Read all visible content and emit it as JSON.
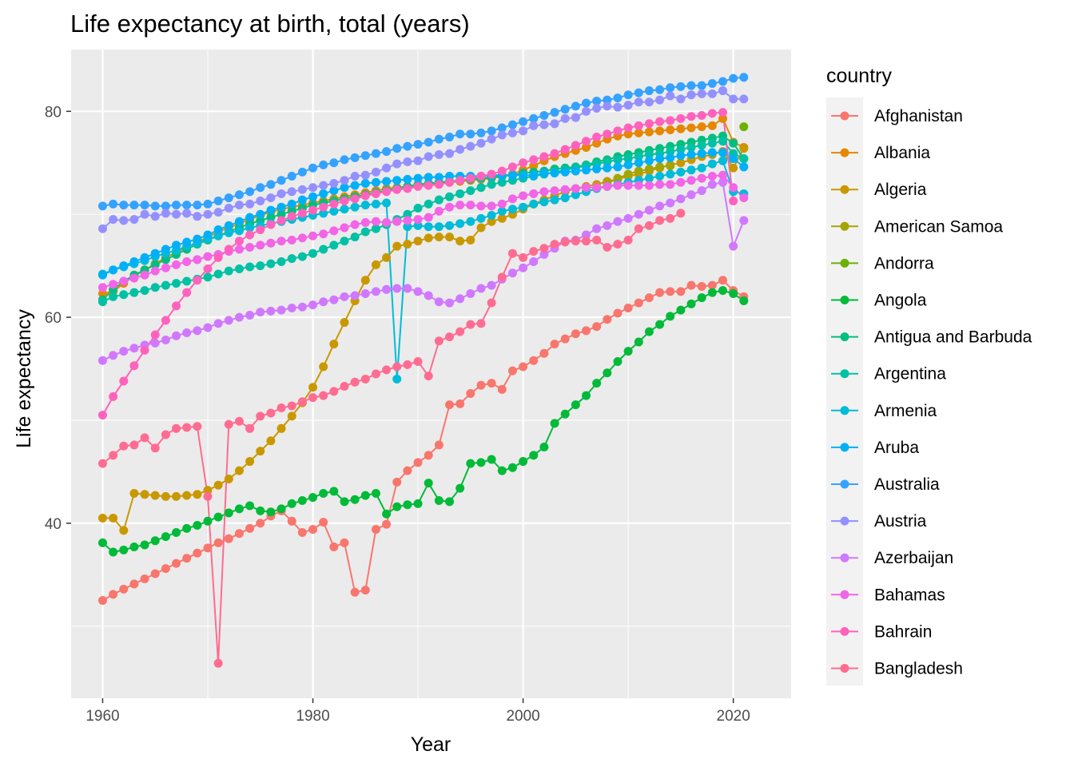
{
  "chart_data": {
    "type": "line",
    "title": "Life expectancy at birth, total (years)",
    "xlabel": "Year",
    "ylabel": "Life expectancy",
    "xlim": [
      1957,
      2025.5
    ],
    "ylim": [
      23,
      86
    ],
    "x_ticks": [
      1960,
      1980,
      2000,
      2020
    ],
    "y_ticks": [
      40,
      60,
      80
    ],
    "grid": true,
    "markers": true,
    "legend_title": "country",
    "legend_position": "right",
    "series": [
      {
        "name": "Afghanistan",
        "color": "#F8766D",
        "start": 1960,
        "values": [
          32.5,
          33.1,
          33.6,
          34.1,
          34.6,
          35.1,
          35.6,
          36.1,
          36.6,
          37.1,
          37.6,
          38.1,
          38.5,
          39.0,
          39.5,
          40.0,
          40.7,
          41.2,
          40.2,
          39.1,
          39.4,
          40.1,
          37.7,
          38.1,
          33.3,
          33.5,
          39.4,
          39.9,
          44.0,
          45.1,
          45.9,
          46.6,
          47.6,
          51.5,
          51.6,
          52.6,
          53.4,
          53.6,
          53.0,
          54.8,
          55.2,
          55.8,
          56.5,
          57.4,
          57.9,
          58.4,
          58.7,
          59.1,
          59.8,
          60.4,
          60.9,
          61.4,
          61.9,
          62.4,
          62.5,
          62.5,
          63.1,
          63.0,
          63.1,
          63.6,
          62.6,
          62.0
        ]
      },
      {
        "name": "Albania",
        "color": "#E58700",
        "start": 1960,
        "values": [
          62.3,
          62.5,
          63.3,
          64.0,
          64.6,
          65.2,
          65.8,
          66.3,
          66.8,
          67.3,
          67.8,
          68.3,
          68.7,
          69.1,
          69.5,
          69.9,
          70.2,
          70.5,
          70.7,
          70.9,
          71.1,
          71.3,
          71.5,
          71.7,
          71.9,
          72.1,
          72.3,
          72.5,
          72.6,
          72.7,
          72.8,
          72.9,
          73.0,
          73.1,
          73.2,
          73.3,
          73.4,
          73.5,
          73.7,
          73.9,
          74.3,
          74.7,
          75.2,
          75.6,
          75.9,
          76.2,
          76.5,
          76.9,
          77.3,
          77.6,
          77.8,
          77.9,
          78.0,
          78.1,
          78.2,
          78.3,
          78.4,
          78.5,
          78.6,
          79.3,
          77.0,
          76.5
        ]
      },
      {
        "name": "Algeria",
        "color": "#C99800",
        "start": 1960,
        "values": [
          40.5,
          40.5,
          39.3,
          42.9,
          42.8,
          42.7,
          42.6,
          42.6,
          42.7,
          42.8,
          43.2,
          43.7,
          44.3,
          45.1,
          46.0,
          47.0,
          48.0,
          49.2,
          50.4,
          51.7,
          53.2,
          55.2,
          57.4,
          59.5,
          61.6,
          63.6,
          65.1,
          65.8,
          66.9,
          67.1,
          67.4,
          67.7,
          67.8,
          67.8,
          67.4,
          67.5,
          68.7,
          69.3,
          69.6,
          70.0,
          70.5,
          71.0,
          71.4,
          71.8,
          72.2,
          72.5,
          72.7,
          72.9,
          73.2,
          73.4,
          73.7,
          73.9,
          74.2,
          74.5,
          74.8,
          75.0,
          75.3,
          75.6,
          75.8,
          76.1,
          74.5,
          76.4
        ]
      },
      {
        "name": "American Samoa",
        "color": "#A3A500",
        "start": 2008,
        "values": [
          73.0,
          73.5,
          73.9,
          74.2,
          74.4,
          74.6,
          74.7
        ]
      },
      {
        "name": "Andorra",
        "color": "#6BB100",
        "start": 1960,
        "values": [
          null,
          null,
          null,
          null,
          null,
          null,
          null,
          null,
          null,
          null,
          null,
          null,
          null,
          null,
          null,
          null,
          null,
          null,
          null,
          null,
          null,
          null,
          null,
          null,
          null,
          null,
          null,
          null,
          null,
          null,
          null,
          null,
          null,
          null,
          null,
          null,
          null,
          null,
          null,
          null,
          null,
          null,
          null,
          null,
          null,
          null,
          null,
          null,
          null,
          null,
          null,
          null,
          null,
          null,
          null,
          null,
          null,
          null,
          null,
          null,
          null,
          78.5
        ]
      },
      {
        "name": "Angola",
        "color": "#00BA38",
        "start": 1960,
        "values": [
          38.1,
          37.2,
          37.4,
          37.7,
          37.9,
          38.3,
          38.7,
          39.1,
          39.5,
          39.8,
          40.2,
          40.6,
          41.0,
          41.4,
          41.7,
          41.2,
          41.1,
          41.4,
          41.9,
          42.2,
          42.5,
          42.9,
          43.1,
          42.1,
          42.3,
          42.7,
          42.9,
          40.9,
          41.6,
          41.8,
          41.9,
          43.9,
          42.2,
          42.1,
          43.4,
          45.8,
          45.9,
          46.2,
          45.1,
          45.4,
          46.0,
          46.6,
          47.4,
          49.7,
          50.6,
          51.5,
          52.4,
          53.6,
          54.6,
          55.7,
          56.7,
          57.6,
          58.6,
          59.3,
          60.1,
          60.7,
          61.3,
          61.9,
          62.4,
          62.6,
          62.3,
          61.6
        ]
      },
      {
        "name": "Antigua and Barbuda",
        "color": "#00BF7D",
        "start": 1960,
        "values": [
          61.7,
          62.7,
          63.5,
          64.1,
          64.6,
          65.1,
          65.6,
          66.1,
          66.6,
          67.1,
          67.5,
          67.9,
          68.3,
          68.7,
          69.1,
          69.4,
          69.7,
          70.0,
          70.3,
          70.6,
          70.9,
          71.1,
          71.3,
          71.5,
          71.7,
          71.9,
          72.1,
          72.3,
          72.5,
          72.7,
          72.9,
          73.0,
          73.1,
          73.2,
          73.3,
          73.4,
          73.5,
          73.6,
          73.7,
          73.8,
          74.0,
          74.1,
          74.2,
          74.4,
          74.5,
          74.6,
          74.8,
          75.1,
          75.3,
          75.6,
          75.8,
          76.0,
          76.2,
          76.4,
          76.6,
          76.8,
          77.0,
          77.2,
          77.4,
          77.6,
          76.9,
          75.4
        ]
      },
      {
        "name": "Argentina",
        "color": "#00C1A3",
        "start": 1960,
        "values": [
          61.5,
          62.0,
          62.2,
          62.4,
          62.6,
          62.9,
          63.1,
          63.3,
          63.5,
          63.7,
          63.9,
          64.2,
          64.5,
          64.7,
          64.9,
          65.0,
          65.2,
          65.4,
          65.7,
          65.9,
          66.2,
          66.6,
          67.0,
          67.4,
          67.8,
          68.3,
          68.6,
          69.0,
          69.5,
          70.0,
          70.6,
          71.0,
          71.4,
          71.7,
          72.0,
          72.3,
          72.6,
          72.9,
          73.1,
          73.3,
          73.5,
          73.7,
          73.9,
          74.1,
          74.3,
          74.5,
          74.7,
          74.9,
          75.1,
          75.3,
          75.4,
          75.6,
          75.8,
          75.9,
          76.1,
          76.3,
          76.5,
          76.7,
          76.9,
          77.1,
          75.9,
          75.4
        ]
      },
      {
        "name": "Armenia",
        "color": "#00BCD8",
        "start": 1960,
        "values": [
          64.2,
          64.6,
          64.9,
          65.2,
          65.5,
          65.9,
          66.2,
          66.5,
          66.9,
          67.2,
          67.6,
          67.9,
          68.2,
          68.4,
          68.7,
          68.9,
          69.1,
          69.3,
          69.5,
          69.7,
          69.9,
          70.1,
          70.3,
          70.5,
          70.7,
          70.9,
          71.0,
          71.1,
          54.0,
          68.8,
          68.9,
          68.8,
          68.8,
          68.9,
          69.1,
          69.3,
          69.6,
          69.9,
          70.3,
          70.5,
          70.7,
          71.0,
          71.2,
          71.4,
          71.6,
          71.9,
          72.2,
          72.5,
          72.7,
          72.9,
          73.1,
          73.3,
          73.5,
          73.7,
          73.9,
          74.1,
          74.3,
          74.5,
          74.9,
          75.2,
          72.2,
          72.0
        ]
      },
      {
        "name": "Aruba",
        "color": "#00B0F6",
        "start": 1960,
        "values": [
          64.1,
          64.6,
          65.0,
          65.4,
          65.8,
          66.2,
          66.6,
          67.0,
          67.3,
          67.6,
          68.0,
          68.5,
          68.9,
          69.3,
          69.7,
          70.0,
          70.4,
          70.7,
          71.0,
          71.4,
          71.7,
          72.0,
          72.3,
          72.6,
          72.8,
          73.0,
          73.1,
          73.2,
          73.3,
          73.4,
          73.5,
          73.6,
          73.6,
          73.7,
          73.7,
          73.7,
          73.7,
          73.8,
          73.8,
          73.8,
          73.8,
          73.8,
          74.0,
          74.0,
          74.1,
          74.2,
          74.3,
          74.4,
          74.5,
          74.6,
          74.8,
          75.0,
          75.2,
          75.4,
          75.5,
          75.7,
          75.8,
          75.9,
          76.0,
          76.0,
          75.4,
          74.6
        ]
      },
      {
        "name": "Australia",
        "color": "#35A2FF",
        "start": 1960,
        "values": [
          70.8,
          71.0,
          70.9,
          70.9,
          70.9,
          70.8,
          70.8,
          70.9,
          70.9,
          70.9,
          71.0,
          71.3,
          71.6,
          71.9,
          72.2,
          72.6,
          72.9,
          73.3,
          73.7,
          74.1,
          74.5,
          74.8,
          75.0,
          75.3,
          75.5,
          75.7,
          75.9,
          76.1,
          76.4,
          76.6,
          76.8,
          77.0,
          77.3,
          77.5,
          77.8,
          77.8,
          77.9,
          78.1,
          78.4,
          78.7,
          79.0,
          79.3,
          79.6,
          79.9,
          80.2,
          80.5,
          80.8,
          81.0,
          81.1,
          81.3,
          81.6,
          81.8,
          82.0,
          82.1,
          82.3,
          82.4,
          82.5,
          82.5,
          82.7,
          82.9,
          83.2,
          83.3
        ]
      },
      {
        "name": "Austria",
        "color": "#9590FF",
        "start": 1960,
        "values": [
          68.6,
          69.5,
          69.4,
          69.5,
          70.0,
          69.8,
          70.1,
          70.0,
          70.1,
          69.8,
          70.0,
          70.2,
          70.6,
          70.9,
          71.0,
          71.3,
          71.6,
          72.0,
          72.2,
          72.4,
          72.6,
          72.8,
          73.0,
          73.3,
          73.7,
          73.8,
          74.1,
          74.5,
          74.9,
          75.1,
          75.2,
          75.6,
          75.8,
          75.9,
          76.3,
          76.6,
          76.9,
          77.3,
          77.7,
          77.9,
          78.1,
          78.6,
          78.7,
          78.8,
          79.3,
          79.4,
          80.0,
          80.3,
          80.5,
          80.4,
          80.6,
          80.9,
          80.9,
          81.1,
          81.5,
          81.2,
          81.6,
          81.7,
          81.7,
          82.0,
          81.2,
          81.2
        ]
      },
      {
        "name": "Azerbaijan",
        "color": "#D078FF",
        "start": 1960,
        "values": [
          55.8,
          56.3,
          56.7,
          57.0,
          57.3,
          57.5,
          57.8,
          58.2,
          58.5,
          58.7,
          59.0,
          59.4,
          59.7,
          60.0,
          60.2,
          60.5,
          60.6,
          60.7,
          60.9,
          61.0,
          61.2,
          61.5,
          61.7,
          62.0,
          62.1,
          62.3,
          62.5,
          62.7,
          62.8,
          62.8,
          62.5,
          62.1,
          61.5,
          61.4,
          61.8,
          62.3,
          62.8,
          63.1,
          63.7,
          64.3,
          64.8,
          65.4,
          66.1,
          66.7,
          67.4,
          67.5,
          68.0,
          68.6,
          68.9,
          69.3,
          69.6,
          70.0,
          70.4,
          70.8,
          71.1,
          71.5,
          71.9,
          72.3,
          72.9,
          73.1,
          66.9,
          69.4
        ]
      },
      {
        "name": "Bahamas",
        "color": "#F265E7",
        "start": 1960,
        "values": [
          62.9,
          63.2,
          63.5,
          63.8,
          64.1,
          64.5,
          64.8,
          65.1,
          65.4,
          65.6,
          65.9,
          66.1,
          66.4,
          66.6,
          66.8,
          67.0,
          67.2,
          67.4,
          67.5,
          67.7,
          67.9,
          68.1,
          68.4,
          68.7,
          69.0,
          69.2,
          69.3,
          69.2,
          69.3,
          69.4,
          69.5,
          69.7,
          70.3,
          70.7,
          70.9,
          70.9,
          70.8,
          70.8,
          71.0,
          71.5,
          71.8,
          72.0,
          72.2,
          72.3,
          72.4,
          72.5,
          72.6,
          72.6,
          72.7,
          72.8,
          72.8,
          72.8,
          72.8,
          72.9,
          72.9,
          73.1,
          73.3,
          73.5,
          73.7,
          73.8,
          72.6,
          71.6
        ]
      },
      {
        "name": "Bahrain",
        "color": "#FF62BC",
        "start": 1960,
        "values": [
          50.5,
          52.3,
          53.8,
          55.3,
          56.8,
          58.3,
          59.7,
          61.1,
          62.4,
          63.6,
          64.7,
          65.8,
          66.6,
          67.4,
          68.0,
          68.5,
          69.0,
          69.4,
          69.8,
          70.1,
          70.4,
          70.7,
          71.0,
          71.3,
          71.5,
          71.8,
          72.0,
          72.2,
          72.4,
          72.5,
          72.7,
          72.8,
          72.9,
          73.1,
          73.3,
          73.5,
          73.7,
          73.9,
          74.2,
          74.6,
          75.0,
          75.3,
          75.6,
          75.9,
          76.3,
          76.7,
          77.1,
          77.5,
          77.8,
          78.1,
          78.4,
          78.6,
          78.8,
          79.0,
          79.1,
          79.3,
          79.5,
          79.6,
          79.8,
          79.9,
          71.3,
          null
        ]
      },
      {
        "name": "Bangladesh",
        "color": "#FF6C91",
        "start": 1960,
        "values": [
          45.8,
          46.6,
          47.5,
          47.6,
          48.3,
          47.3,
          48.6,
          49.2,
          49.3,
          49.4,
          42.6,
          26.4,
          49.6,
          49.9,
          49.2,
          50.4,
          50.7,
          51.2,
          51.4,
          51.8,
          52.2,
          52.4,
          52.8,
          53.3,
          53.7,
          54.0,
          54.5,
          54.9,
          55.2,
          55.4,
          55.7,
          54.3,
          57.7,
          58.1,
          58.6,
          59.3,
          59.4,
          61.4,
          63.9,
          66.2,
          65.8,
          66.4,
          66.7,
          67.1,
          67.3,
          67.4,
          67.4,
          67.5,
          66.8,
          67.1,
          67.5,
          68.6,
          68.9,
          69.4,
          69.6,
          70.1,
          null,
          null,
          null,
          null,
          null,
          null
        ]
      }
    ]
  }
}
